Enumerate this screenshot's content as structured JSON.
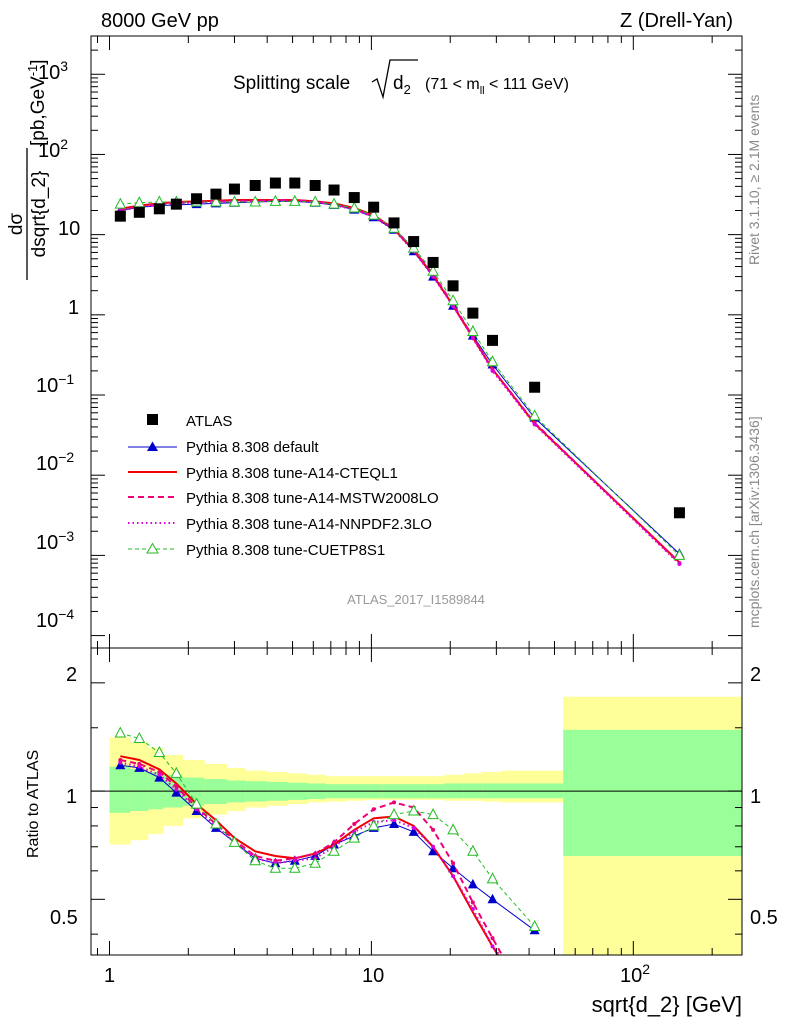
{
  "header": {
    "left": "8000 GeV pp",
    "right": "Z (Drell-Yan)"
  },
  "title_prefix": "Splitting scale",
  "title_root": "d",
  "title_root_sub": "2",
  "title_range_a": "(71 < m",
  "title_range_sub": "ll",
  "title_range_b": " < 111 GeV)",
  "ylabel_top_num": "dσ",
  "ylabel_top_den": "dsqrt{d_2}",
  "ylabel_top_units": "[pb,GeV",
  "ylabel_top_units_exp": "-1",
  "ylabel_top_units_close": "]",
  "ylabel_ratio": "Ratio to ATLAS",
  "xlabel": "sqrt{d_2} [GeV]",
  "side_rivet": "Rivet 3.1.10, ≥ 2.1M events",
  "side_mcplots": "mcplots.cern.ch [arXiv:1306.3436]",
  "watermark": "ATLAS_2017_I1589844",
  "tick_labels": {
    "top_y": [
      "10",
      "10",
      "10",
      "1",
      "10",
      "10",
      "10",
      "10"
    ],
    "top_y_exp": [
      "3",
      "2",
      "",
      "",
      "−1",
      "−2",
      "−3",
      "−4"
    ],
    "ratio_y": [
      "2",
      "1",
      "0.5"
    ],
    "x": [
      "1",
      "10",
      "10"
    ],
    "x_exp": [
      "",
      "",
      "2"
    ]
  },
  "colors": {
    "atlas": "#000000",
    "default": "#0000cc",
    "cteql1": "#ee0000",
    "mstw": "#ee0077",
    "nnpdf": "#dd00dd",
    "cuetp8s1": "#22bb22",
    "band_inner": "#99ff99",
    "band_outer": "#ffff99"
  },
  "chart_data": {
    "type": "line",
    "x_scale": "log",
    "xlim": [
      0.85,
      260
    ],
    "top_panel": {
      "y_scale": "log",
      "ylim": [
        7e-05,
        3000
      ],
      "legend_position": "lower-left",
      "series": [
        {
          "name": "ATLAS",
          "style": "marker",
          "x": [
            1.1,
            1.3,
            1.55,
            1.8,
            2.15,
            2.55,
            3.0,
            3.6,
            4.3,
            5.1,
            6.1,
            7.2,
            8.6,
            10.2,
            12.2,
            14.5,
            17.2,
            20.5,
            24.4,
            29.0,
            42.0,
            150.0
          ],
          "y": [
            17,
            19,
            21,
            24,
            28,
            32,
            37,
            41,
            44,
            44,
            41,
            36,
            29,
            22,
            14,
            8.2,
            4.5,
            2.3,
            1.05,
            0.48,
            0.125,
            0.0034
          ]
        },
        {
          "name": "Pythia 8.308 default",
          "style": "line-filled-triangle",
          "x": [
            1.1,
            1.3,
            1.55,
            1.8,
            2.15,
            2.55,
            3.0,
            3.6,
            4.3,
            5.1,
            6.1,
            7.2,
            8.6,
            10.2,
            12.2,
            14.5,
            17.2,
            20.5,
            24.4,
            29.0,
            42.0,
            150.0
          ],
          "y": [
            20,
            22,
            23,
            23.5,
            24,
            24.5,
            25,
            25.5,
            26,
            26,
            25,
            23.5,
            20.5,
            16.5,
            11.5,
            6.2,
            3.0,
            1.3,
            0.55,
            0.24,
            0.052,
            0.00105
          ]
        },
        {
          "name": "Pythia 8.308 tune-A14-CTEQL1",
          "style": "line-solid",
          "x": [
            1.1,
            1.3,
            1.55,
            1.8,
            2.15,
            2.55,
            3.0,
            3.6,
            4.3,
            5.1,
            6.1,
            7.2,
            8.6,
            10.2,
            12.2,
            14.5,
            17.2,
            20.5,
            24.4,
            29.0,
            42.0,
            150.0
          ],
          "y": [
            21,
            23,
            24.5,
            25.5,
            26,
            26.5,
            27,
            27,
            27,
            27,
            26,
            24.5,
            21.5,
            17.5,
            11.8,
            6.4,
            3.1,
            1.3,
            0.52,
            0.21,
            0.044,
            0.00082
          ]
        },
        {
          "name": "Pythia 8.308 tune-A14-MSTW2008LO",
          "style": "line-dashed-dot",
          "x": [
            1.1,
            1.3,
            1.55,
            1.8,
            2.15,
            2.55,
            3.0,
            3.6,
            4.3,
            5.1,
            6.1,
            7.2,
            8.6,
            10.2,
            12.2,
            14.5,
            17.2,
            20.5,
            24.4,
            29.0,
            42.0,
            150.0
          ],
          "y": [
            20.5,
            22.5,
            24,
            25,
            25.5,
            26,
            26.5,
            26.5,
            27,
            27,
            26,
            24,
            21,
            17,
            12,
            6.5,
            3.2,
            1.35,
            0.53,
            0.21,
            0.045,
            0.0008
          ]
        },
        {
          "name": "Pythia 8.308 tune-A14-NNPDF2.3LO",
          "style": "line-dotted",
          "x": [
            1.1,
            1.3,
            1.55,
            1.8,
            2.15,
            2.55,
            3.0,
            3.6,
            4.3,
            5.1,
            6.1,
            7.2,
            8.6,
            10.2,
            12.2,
            14.5,
            17.2,
            20.5,
            24.4,
            29.0,
            42.0,
            150.0
          ],
          "y": [
            20,
            22,
            23.5,
            24.5,
            25,
            25.5,
            26,
            26,
            26.5,
            26.5,
            25.5,
            23.5,
            20.5,
            16.5,
            11.5,
            6.2,
            3.0,
            1.28,
            0.51,
            0.2,
            0.043,
            0.00078
          ]
        },
        {
          "name": "Pythia 8.308 tune-CUETP8S1",
          "style": "line-dashed-open-triangle",
          "x": [
            1.1,
            1.3,
            1.55,
            1.8,
            2.15,
            2.55,
            3.0,
            3.6,
            4.3,
            5.1,
            6.1,
            7.2,
            8.6,
            10.2,
            12.2,
            14.5,
            17.2,
            20.5,
            24.4,
            29.0,
            42.0,
            150.0
          ],
          "y": [
            24,
            25,
            25.5,
            25.5,
            25.5,
            25.5,
            25.5,
            25.5,
            26,
            26,
            25.5,
            24,
            21.5,
            17.5,
            12,
            6.8,
            3.5,
            1.5,
            0.62,
            0.26,
            0.055,
            0.001
          ]
        }
      ]
    },
    "ratio_panel": {
      "y_scale": "log",
      "ylim": [
        0.35,
        2.5
      ],
      "reference_line": 1,
      "band_edges": [
        1.0,
        1.2,
        1.4,
        1.6,
        1.9,
        2.3,
        2.8,
        3.3,
        4.0,
        4.8,
        5.7,
        6.7,
        8.0,
        9.5,
        11.0,
        13.5,
        16.0,
        19.0,
        22.5,
        26.5,
        31.5,
        54.0,
        260.0
      ],
      "band_inner_low": [
        0.87,
        0.88,
        0.89,
        0.9,
        0.91,
        0.92,
        0.93,
        0.935,
        0.94,
        0.945,
        0.95,
        0.955,
        0.955,
        0.955,
        0.955,
        0.955,
        0.955,
        0.955,
        0.955,
        0.955,
        0.955,
        0.66
      ],
      "band_inner_high": [
        1.17,
        1.15,
        1.13,
        1.11,
        1.09,
        1.08,
        1.07,
        1.065,
        1.06,
        1.055,
        1.05,
        1.045,
        1.045,
        1.045,
        1.045,
        1.045,
        1.045,
        1.05,
        1.05,
        1.05,
        1.05,
        1.48
      ],
      "band_outer_low": [
        0.71,
        0.73,
        0.76,
        0.8,
        0.84,
        0.86,
        0.88,
        0.9,
        0.91,
        0.92,
        0.93,
        0.935,
        0.94,
        0.945,
        0.945,
        0.945,
        0.945,
        0.94,
        0.94,
        0.935,
        0.93,
        0.33
      ],
      "band_outer_high": [
        1.41,
        1.37,
        1.32,
        1.26,
        1.22,
        1.19,
        1.16,
        1.14,
        1.13,
        1.12,
        1.11,
        1.1,
        1.1,
        1.1,
        1.1,
        1.1,
        1.1,
        1.11,
        1.12,
        1.13,
        1.14,
        1.83
      ],
      "series": [
        {
          "name": "Pythia 8.308 default",
          "x": [
            1.1,
            1.3,
            1.55,
            1.8,
            2.15,
            2.55,
            3.0,
            3.6,
            4.3,
            5.1,
            6.1,
            7.2,
            8.6,
            10.2,
            12.2,
            14.5,
            17.2,
            20.5,
            24.4,
            29.0,
            42.0
          ],
          "y": [
            1.18,
            1.16,
            1.09,
            0.99,
            0.88,
            0.79,
            0.72,
            0.65,
            0.63,
            0.64,
            0.66,
            0.71,
            0.75,
            0.79,
            0.81,
            0.77,
            0.68,
            0.61,
            0.55,
            0.5,
            0.41
          ]
        },
        {
          "name": "Pythia 8.308 tune-A14-CTEQL1",
          "x": [
            1.1,
            1.3,
            1.55,
            1.8,
            2.15,
            2.55,
            3.0,
            3.6,
            4.3,
            5.1,
            6.1,
            7.2,
            8.6,
            10.2,
            12.2,
            14.5,
            17.2,
            20.5,
            24.4,
            29.0,
            32.0
          ],
          "y": [
            1.25,
            1.22,
            1.15,
            1.05,
            0.92,
            0.83,
            0.74,
            0.68,
            0.66,
            0.65,
            0.67,
            0.71,
            0.78,
            0.84,
            0.85,
            0.8,
            0.7,
            0.58,
            0.46,
            0.37,
            0.33
          ]
        },
        {
          "name": "Pythia 8.308 tune-A14-MSTW2008LO",
          "x": [
            1.1,
            1.3,
            1.55,
            1.8,
            2.15,
            2.55,
            3.0,
            3.6,
            4.3,
            5.1,
            6.1,
            7.2,
            8.6,
            10.2,
            12.2,
            14.5,
            17.2,
            20.5,
            24.4,
            29.0,
            33.0
          ],
          "y": [
            1.22,
            1.19,
            1.13,
            1.03,
            0.9,
            0.81,
            0.73,
            0.66,
            0.64,
            0.65,
            0.67,
            0.72,
            0.81,
            0.89,
            0.93,
            0.9,
            0.78,
            0.63,
            0.49,
            0.39,
            0.33
          ]
        },
        {
          "name": "Pythia 8.308 tune-A14-NNPDF2.3LO",
          "x": [
            1.1,
            1.3,
            1.55,
            1.8,
            2.15,
            2.55,
            3.0,
            3.6,
            4.3,
            5.1,
            6.1,
            7.2,
            8.6,
            10.2,
            12.2,
            14.5,
            17.2,
            20.5,
            24.4,
            29.0,
            33.0
          ],
          "y": [
            1.2,
            1.17,
            1.11,
            1.01,
            0.89,
            0.8,
            0.72,
            0.65,
            0.63,
            0.64,
            0.65,
            0.7,
            0.77,
            0.82,
            0.83,
            0.79,
            0.7,
            0.58,
            0.47,
            0.37,
            0.33
          ]
        },
        {
          "name": "Pythia 8.308 tune-CUETP8S1",
          "x": [
            1.1,
            1.3,
            1.55,
            1.8,
            2.15,
            2.55,
            3.0,
            3.6,
            4.3,
            5.1,
            6.1,
            7.2,
            8.6,
            10.2,
            12.2,
            14.5,
            17.2,
            20.5,
            24.4,
            29.0,
            42.0
          ],
          "y": [
            1.45,
            1.4,
            1.28,
            1.12,
            0.92,
            0.81,
            0.72,
            0.64,
            0.61,
            0.61,
            0.63,
            0.68,
            0.74,
            0.8,
            0.86,
            0.88,
            0.86,
            0.78,
            0.68,
            0.57,
            0.42
          ]
        }
      ]
    }
  }
}
